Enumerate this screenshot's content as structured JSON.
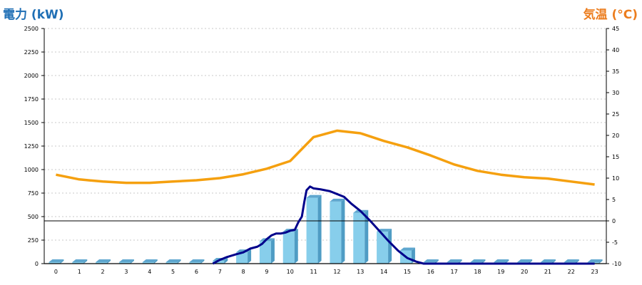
{
  "header": {
    "left_title": "電力 (kW)",
    "right_title": "気温 (°C)"
  },
  "colors": {
    "bar_front": "#87ceeb",
    "bar_side": "#4f9cc4",
    "bar_top": "#5fa7cf",
    "power_line": "#00008b",
    "temperature_line": "#f5a00f",
    "zero_line": "#000000",
    "grid": "#c8c8c8"
  },
  "chart_data": {
    "type": "bar",
    "x": [
      0,
      1,
      2,
      3,
      4,
      5,
      6,
      7,
      8,
      9,
      10,
      11,
      12,
      13,
      14,
      15,
      16,
      17,
      18,
      19,
      20,
      21,
      22,
      23
    ],
    "xticks": [
      "0",
      "1",
      "2",
      "3",
      "4",
      "5",
      "6",
      "7",
      "8",
      "9",
      "10",
      "11",
      "12",
      "13",
      "14",
      "15",
      "16",
      "17",
      "18",
      "19",
      "20",
      "21",
      "22",
      "23"
    ],
    "left_axis": {
      "title": "電力 (kW)",
      "ylim": [
        0,
        2500
      ],
      "ticks": [
        "0",
        "250",
        "500",
        "750",
        "1000",
        "1250",
        "1500",
        "1750",
        "2000",
        "2250",
        "2500"
      ]
    },
    "right_axis": {
      "title": "気温 (°C)",
      "ylim": [
        -10,
        45
      ],
      "ticks": [
        "-10",
        "-5",
        "0",
        "5",
        "10",
        "15",
        "20",
        "25",
        "30",
        "35",
        "40",
        "45"
      ]
    },
    "grid": true,
    "bars": {
      "values": [
        0,
        0,
        0,
        0,
        0,
        0,
        0,
        30,
        120,
        240,
        340,
        700,
        660,
        540,
        340,
        140,
        0,
        0,
        0,
        0,
        0,
        0,
        0,
        0
      ]
    },
    "power_line": {
      "x": [
        6.7,
        7.0,
        7.3,
        7.7,
        8.0,
        8.3,
        8.6,
        8.8,
        9.0,
        9.2,
        9.4,
        9.6,
        9.8,
        10.0,
        10.2,
        10.35,
        10.5,
        10.6,
        10.7,
        10.85,
        11.0,
        11.3,
        11.7,
        12.0,
        12.3,
        12.6,
        13.0,
        13.4,
        13.8,
        14.2,
        14.6,
        15.0,
        15.4,
        15.7,
        16.0,
        23.0
      ],
      "y": [
        0,
        40,
        70,
        100,
        120,
        160,
        180,
        210,
        260,
        300,
        320,
        320,
        330,
        350,
        360,
        440,
        500,
        650,
        780,
        820,
        800,
        790,
        770,
        740,
        710,
        640,
        560,
        460,
        350,
        240,
        140,
        60,
        20,
        0,
        0,
        0
      ]
    },
    "temperature": {
      "values": [
        10.8,
        9.7,
        9.2,
        8.9,
        8.9,
        9.2,
        9.5,
        10.0,
        10.9,
        12.2,
        14.0,
        19.6,
        21.1,
        20.5,
        18.7,
        17.2,
        15.3,
        13.2,
        11.7,
        10.8,
        10.2,
        9.9,
        9.2,
        8.5
      ]
    }
  }
}
